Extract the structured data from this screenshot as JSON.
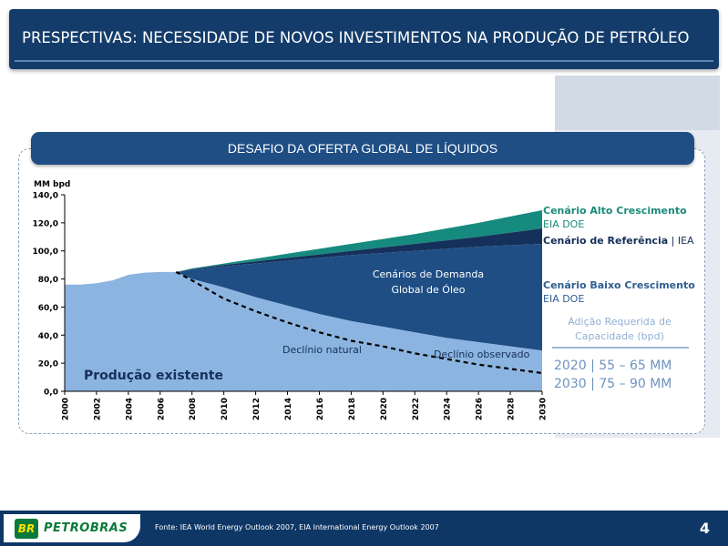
{
  "header": {
    "title": "PRESPECTIVAS: NECESSIDADE DE NOVOS INVESTIMENTOS NA PRODUÇÃO DE PETRÓLEO"
  },
  "section": {
    "title": "DESAFIO DA OFERTA GLOBAL DE LÍQUIDOS"
  },
  "legend": {
    "high_label": "Cenário Alto Crescimento",
    "high_source": "EIA DOE",
    "ref_label": "Cenário de Referência",
    "ref_source": " | IEA",
    "low_label": "Cenário Baixo Crescimento",
    "low_source": "EIA DOE"
  },
  "capacity": {
    "title": "Adição Requerida de Capacidade (bpd)",
    "line_2020": "2020 | 55 – 65 MM",
    "line_2030": "2030 | 75 – 90 MM"
  },
  "footer": {
    "logo_mark": "BR",
    "logo_text": "PETROBRAS",
    "source": "Fonte: IEA World Energy Outlook 2007, EIA International Energy Outlook 2007",
    "page_number": "4"
  },
  "colors": {
    "title_bar": "#143c6b",
    "existing_production": "#8cb4e0",
    "low_scenario": "#1f4e85",
    "reference_scenario": "#15305a",
    "high_scenario": "#168a7e"
  },
  "chart_data": {
    "type": "area",
    "title": "",
    "ylabel": "MM bpd",
    "xlabel": "",
    "xlim": [
      2000,
      2030
    ],
    "ylim": [
      0,
      140
    ],
    "y_ticks": [
      "0,0",
      "20,0",
      "40,0",
      "60,0",
      "80,0",
      "100,0",
      "120,0",
      "140,0"
    ],
    "x_ticks": [
      "2000",
      "2002",
      "2004",
      "2006",
      "2008",
      "2010",
      "2012",
      "2014",
      "2016",
      "2018",
      "2020",
      "2022",
      "2024",
      "2026",
      "2028",
      "2030"
    ],
    "series": [
      {
        "name": "Produção existente",
        "x": [
          2000,
          2001,
          2002,
          2003,
          2004,
          2005,
          2006,
          2007,
          2008,
          2010,
          2012,
          2014,
          2016,
          2018,
          2020,
          2022,
          2024,
          2026,
          2028,
          2030
        ],
        "values": [
          76,
          76,
          77,
          79,
          83,
          84.5,
          85,
          85,
          80,
          74,
          67,
          61,
          55,
          50,
          46,
          42,
          38,
          35,
          32,
          29
        ]
      },
      {
        "name": "Cenário Baixo Crescimento",
        "x": [
          2007,
          2008,
          2010,
          2012,
          2014,
          2016,
          2018,
          2020,
          2022,
          2024,
          2026,
          2028,
          2030
        ],
        "values": [
          85,
          86.5,
          89,
          91,
          93,
          95,
          97,
          98.5,
          100,
          101.5,
          103,
          104,
          105
        ]
      },
      {
        "name": "Cenário de Referência",
        "x": [
          2007,
          2008,
          2010,
          2012,
          2014,
          2016,
          2018,
          2020,
          2022,
          2024,
          2026,
          2028,
          2030
        ],
        "values": [
          85,
          87,
          90,
          92.5,
          95,
          97.5,
          100,
          102.5,
          105,
          107.5,
          110,
          113,
          116
        ]
      },
      {
        "name": "Cenário Alto Crescimento",
        "x": [
          2007,
          2008,
          2010,
          2012,
          2014,
          2016,
          2018,
          2020,
          2022,
          2024,
          2026,
          2028,
          2030
        ],
        "values": [
          85,
          87.5,
          91,
          94.5,
          98,
          101.5,
          105,
          108.5,
          112,
          116,
          120,
          124.5,
          129
        ]
      },
      {
        "name": "Declínio natural",
        "x": [
          2007,
          2008,
          2010,
          2012,
          2014,
          2016,
          2018,
          2020
        ],
        "values": [
          85,
          79,
          66,
          57,
          49,
          42,
          36,
          32
        ]
      },
      {
        "name": "Declínio observado",
        "x": [
          2020,
          2022,
          2024,
          2026,
          2028,
          2030
        ],
        "values": [
          32,
          27,
          23,
          19,
          16,
          13
        ]
      }
    ],
    "annotations": {
      "existing": "Produção existente",
      "demand_line1": "Cenários de Demanda",
      "demand_line2": "Global de Óleo",
      "natural_decline": "Declínio natural",
      "observed_decline": "Declínio observado"
    },
    "grid": false
  }
}
